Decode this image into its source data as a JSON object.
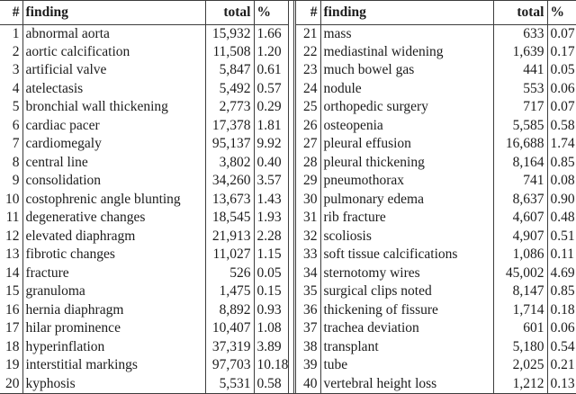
{
  "colors": {
    "border": "#3d3d3d",
    "text": "#1c1c1c",
    "background": "#ffffff"
  },
  "tables": [
    {
      "headers": [
        "#",
        "finding",
        "total",
        "%"
      ],
      "rows": [
        [
          "1",
          "abnormal aorta",
          "15,932",
          "1.66"
        ],
        [
          "2",
          "aortic calcification",
          "11,508",
          "1.20"
        ],
        [
          "3",
          "artificial valve",
          "5,847",
          "0.61"
        ],
        [
          "4",
          "atelectasis",
          "5,492",
          "0.57"
        ],
        [
          "5",
          "bronchial wall thickening",
          "2,773",
          "0.29"
        ],
        [
          "6",
          "cardiac pacer",
          "17,378",
          "1.81"
        ],
        [
          "7",
          "cardiomegaly",
          "95,137",
          "9.92"
        ],
        [
          "8",
          "central line",
          "3,802",
          "0.40"
        ],
        [
          "9",
          "consolidation",
          "34,260",
          "3.57"
        ],
        [
          "10",
          "costophrenic angle blunting",
          "13,673",
          "1.43"
        ],
        [
          "11",
          "degenerative changes",
          "18,545",
          "1.93"
        ],
        [
          "12",
          "elevated diaphragm",
          "21,913",
          "2.28"
        ],
        [
          "13",
          "fibrotic changes",
          "11,027",
          "1.15"
        ],
        [
          "14",
          "fracture",
          "526",
          "0.05"
        ],
        [
          "15",
          "granuloma",
          "1,475",
          "0.15"
        ],
        [
          "16",
          "hernia diaphragm",
          "8,892",
          "0.93"
        ],
        [
          "17",
          "hilar prominence",
          "10,407",
          "1.08"
        ],
        [
          "18",
          "hyperinflation",
          "37,319",
          "3.89"
        ],
        [
          "19",
          "interstitial markings",
          "97,703",
          "10.18"
        ],
        [
          "20",
          "kyphosis",
          "5,531",
          "0.58"
        ]
      ]
    },
    {
      "headers": [
        "#",
        "finding",
        "total",
        "%"
      ],
      "rows": [
        [
          "21",
          "mass",
          "633",
          "0.07"
        ],
        [
          "22",
          "mediastinal widening",
          "1,639",
          "0.17"
        ],
        [
          "23",
          "much bowel gas",
          "441",
          "0.05"
        ],
        [
          "24",
          "nodule",
          "553",
          "0.06"
        ],
        [
          "25",
          "orthopedic surgery",
          "717",
          "0.07"
        ],
        [
          "26",
          "osteopenia",
          "5,585",
          "0.58"
        ],
        [
          "27",
          "pleural effusion",
          "16,688",
          "1.74"
        ],
        [
          "28",
          "pleural thickening",
          "8,164",
          "0.85"
        ],
        [
          "29",
          "pneumothorax",
          "741",
          "0.08"
        ],
        [
          "30",
          "pulmonary edema",
          "8,637",
          "0.90"
        ],
        [
          "31",
          "rib fracture",
          "4,607",
          "0.48"
        ],
        [
          "32",
          "scoliosis",
          "4,907",
          "0.51"
        ],
        [
          "33",
          "soft tissue calcifications",
          "1,086",
          "0.11"
        ],
        [
          "34",
          "sternotomy wires",
          "45,002",
          "4.69"
        ],
        [
          "35",
          "surgical clips noted",
          "8,147",
          "0.85"
        ],
        [
          "36",
          "thickening of fissure",
          "1,714",
          "0.18"
        ],
        [
          "37",
          "trachea deviation",
          "601",
          "0.06"
        ],
        [
          "38",
          "transplant",
          "5,180",
          "0.54"
        ],
        [
          "39",
          "tube",
          "2,025",
          "0.21"
        ],
        [
          "40",
          "vertebral height loss",
          "1,212",
          "0.13"
        ]
      ]
    }
  ]
}
